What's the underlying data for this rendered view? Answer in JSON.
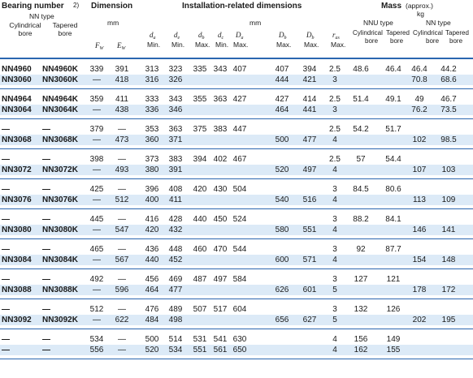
{
  "header": {
    "bearing_number": "Bearing number",
    "footnote": "2)",
    "nn_type": "NN type",
    "cylindrical_bore": "Cylindrical bore",
    "tapered_bore": "Tapered bore",
    "dimension": "Dimension",
    "dimension_unit": "mm",
    "installation": "Installation-related dimensions",
    "installation_unit": "mm",
    "mass": "Mass",
    "mass_approx": "(approx.)",
    "mass_unit": "kg",
    "nnu_type": "NNU type",
    "nn_type_mass": "NN type",
    "cyl1": "Cylindrical",
    "bore1": "Tapered",
    "cyl2": "Cylindrical",
    "bore2": "Tapered",
    "bore_word": "bore",
    "min": "Min.",
    "max": "Max."
  },
  "columns": [
    "cyl_bore",
    "tap_bore",
    "Fw",
    "Ew",
    "da_min",
    "de_min",
    "db_max",
    "dc_min",
    "Da_max",
    "Db_max",
    "Db2_max",
    "ras_max",
    "nnu_cyl",
    "nnu_tap",
    "nn_cyl",
    "nn_tap"
  ],
  "rows": [
    [
      "NN4960",
      "NN4960K",
      "339",
      "391",
      "313",
      "323",
      "335",
      "343",
      "407",
      "407",
      "394",
      "2.5",
      "48.6",
      "46.4",
      "46.4",
      "44.2"
    ],
    [
      "NN3060",
      "NN3060K",
      "—",
      "418",
      "316",
      "326",
      "",
      "",
      "",
      "444",
      "421",
      "3",
      "",
      "",
      "70.8",
      "68.6"
    ],
    [
      "NN4964",
      "NN4964K",
      "359",
      "411",
      "333",
      "343",
      "355",
      "363",
      "427",
      "427",
      "414",
      "2.5",
      "51.4",
      "49.1",
      "49",
      "46.7"
    ],
    [
      "NN3064",
      "NN3064K",
      "—",
      "438",
      "336",
      "346",
      "",
      "",
      "",
      "464",
      "441",
      "3",
      "",
      "",
      "76.2",
      "73.5"
    ],
    [
      "—",
      "—",
      "379",
      "—",
      "353",
      "363",
      "375",
      "383",
      "447",
      "",
      "",
      "2.5",
      "54.2",
      "51.7",
      "",
      ""
    ],
    [
      "NN3068",
      "NN3068K",
      "—",
      "473",
      "360",
      "371",
      "",
      "",
      "",
      "500",
      "477",
      "4",
      "",
      "",
      "102",
      "98.5"
    ],
    [
      "—",
      "—",
      "398",
      "—",
      "373",
      "383",
      "394",
      "402",
      "467",
      "",
      "",
      "2.5",
      "57",
      "54.4",
      "",
      ""
    ],
    [
      "NN3072",
      "NN3072K",
      "—",
      "493",
      "380",
      "391",
      "",
      "",
      "",
      "520",
      "497",
      "4",
      "",
      "",
      "107",
      "103"
    ],
    [
      "—",
      "—",
      "425",
      "—",
      "396",
      "408",
      "420",
      "430",
      "504",
      "",
      "",
      "3",
      "84.5",
      "80.6",
      "",
      ""
    ],
    [
      "NN3076",
      "NN3076K",
      "—",
      "512",
      "400",
      "411",
      "",
      "",
      "",
      "540",
      "516",
      "4",
      "",
      "",
      "113",
      "109"
    ],
    [
      "—",
      "—",
      "445",
      "—",
      "416",
      "428",
      "440",
      "450",
      "524",
      "",
      "",
      "3",
      "88.2",
      "84.1",
      "",
      ""
    ],
    [
      "NN3080",
      "NN3080K",
      "—",
      "547",
      "420",
      "432",
      "",
      "",
      "",
      "580",
      "551",
      "4",
      "",
      "",
      "146",
      "141"
    ],
    [
      "—",
      "—",
      "465",
      "—",
      "436",
      "448",
      "460",
      "470",
      "544",
      "",
      "",
      "3",
      "92",
      "87.7",
      "",
      ""
    ],
    [
      "NN3084",
      "NN3084K",
      "—",
      "567",
      "440",
      "452",
      "",
      "",
      "",
      "600",
      "571",
      "4",
      "",
      "",
      "154",
      "148"
    ],
    [
      "—",
      "—",
      "492",
      "—",
      "456",
      "469",
      "487",
      "497",
      "584",
      "",
      "",
      "3",
      "127",
      "121",
      "",
      ""
    ],
    [
      "NN3088",
      "NN3088K",
      "—",
      "596",
      "464",
      "477",
      "",
      "",
      "",
      "626",
      "601",
      "5",
      "",
      "",
      "178",
      "172"
    ],
    [
      "—",
      "—",
      "512",
      "—",
      "476",
      "489",
      "507",
      "517",
      "604",
      "",
      "",
      "3",
      "132",
      "126",
      "",
      ""
    ],
    [
      "NN3092",
      "NN3092K",
      "—",
      "622",
      "484",
      "498",
      "",
      "",
      "",
      "656",
      "627",
      "5",
      "",
      "",
      "202",
      "195"
    ],
    [
      "—",
      "—",
      "534",
      "—",
      "500",
      "514",
      "531",
      "541",
      "630",
      "",
      "",
      "4",
      "156",
      "149",
      "",
      ""
    ],
    [
      "—",
      "—",
      "556",
      "—",
      "520",
      "534",
      "551",
      "561",
      "650",
      "",
      "",
      "4",
      "162",
      "155",
      "",
      ""
    ]
  ],
  "colors": {
    "rule": "#2a66b0",
    "band": "#dceaf7",
    "thin": "#8fb8e0"
  }
}
